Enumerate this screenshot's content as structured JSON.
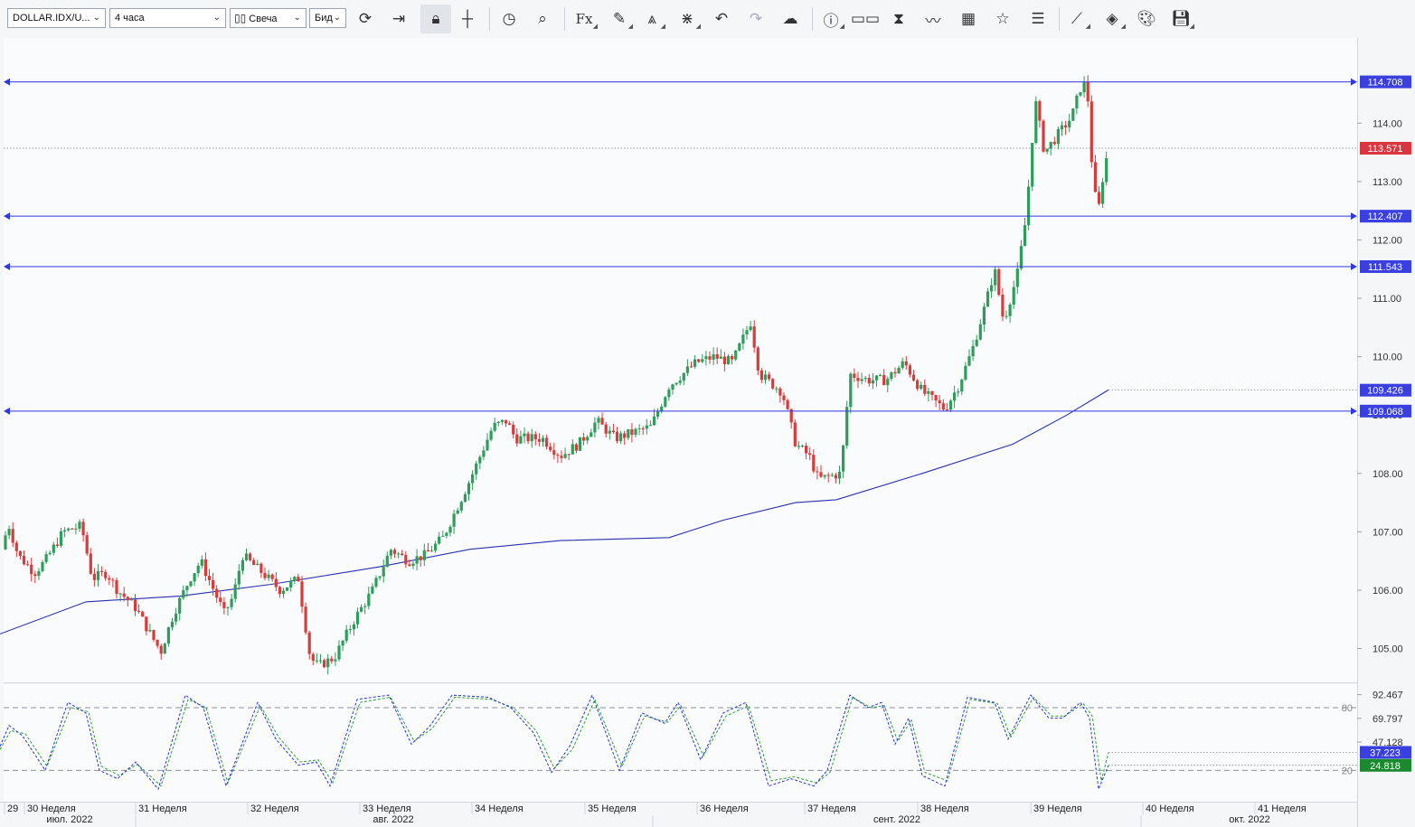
{
  "toolbar": {
    "symbol": "DOLLAR.IDX/U...",
    "timeframe": "4 часа",
    "chart_type": "Свеча",
    "price_side": "Бид",
    "icons": [
      "refresh-icon",
      "scroll-to-end-icon",
      "lock-icon",
      "crosshair-icon",
      "clock-icon",
      "zoom-icon",
      "indicator-fx-icon",
      "pencil-icon",
      "compass-icon",
      "network-icon",
      "undo-icon",
      "redo-icon",
      "cloud-upload-icon",
      "info-icon",
      "compare-icon",
      "hourglass-icon",
      "wave-icon",
      "calendar-icon",
      "star-icon",
      "list-icon",
      "trend-icon",
      "layers-icon",
      "palette-icon",
      "save-icon"
    ]
  },
  "colors": {
    "bull": "#2e9d5b",
    "bear": "#d93a3a",
    "ma": "#2a2fb0",
    "hline": "#3138e0",
    "current_price_bg": "#d9363e",
    "stoch_d_bg": "#1a8a2e",
    "label_blue": "#3a3fe0"
  },
  "chart_data": {
    "type": "candlestick",
    "title": "",
    "xlabel": "",
    "ylabel": "",
    "y_axis_ticks": [
      "114.00",
      "113.00",
      "112.00",
      "111.00",
      "110.00",
      "109.00",
      "108.00",
      "107.00",
      "106.00",
      "105.00"
    ],
    "ylim": [
      104.42,
      115.46
    ],
    "price_path": [
      [
        0,
        106.7
      ],
      [
        10,
        107.1
      ],
      [
        20,
        106.6
      ],
      [
        38,
        106.3
      ],
      [
        50,
        106.5
      ],
      [
        70,
        107.0
      ],
      [
        90,
        107.1
      ],
      [
        102,
        106.2
      ],
      [
        118,
        106.3
      ],
      [
        130,
        106.0
      ],
      [
        150,
        105.7
      ],
      [
        168,
        105.2
      ],
      [
        178,
        104.95
      ],
      [
        192,
        105.6
      ],
      [
        210,
        106.2
      ],
      [
        222,
        106.5
      ],
      [
        248,
        105.6
      ],
      [
        258,
        105.9
      ],
      [
        268,
        106.6
      ],
      [
        290,
        106.3
      ],
      [
        310,
        106.0
      ],
      [
        330,
        106.2
      ],
      [
        343,
        104.85
      ],
      [
        352,
        104.7
      ],
      [
        370,
        104.85
      ],
      [
        392,
        105.5
      ],
      [
        412,
        106.0
      ],
      [
        432,
        106.7
      ],
      [
        452,
        106.5
      ],
      [
        470,
        106.6
      ],
      [
        490,
        106.9
      ],
      [
        520,
        107.9
      ],
      [
        545,
        108.8
      ],
      [
        560,
        108.9
      ],
      [
        570,
        108.6
      ],
      [
        600,
        108.6
      ],
      [
        620,
        108.3
      ],
      [
        640,
        108.5
      ],
      [
        660,
        108.9
      ],
      [
        680,
        108.6
      ],
      [
        700,
        108.7
      ],
      [
        720,
        108.8
      ],
      [
        740,
        109.5
      ],
      [
        770,
        109.9
      ],
      [
        790,
        110.0
      ],
      [
        810,
        109.9
      ],
      [
        830,
        110.6
      ],
      [
        840,
        109.7
      ],
      [
        865,
        109.4
      ],
      [
        880,
        108.5
      ],
      [
        895,
        108.3
      ],
      [
        905,
        107.9
      ],
      [
        930,
        108.0
      ],
      [
        940,
        109.7
      ],
      [
        960,
        109.6
      ],
      [
        980,
        109.6
      ],
      [
        1000,
        109.9
      ],
      [
        1020,
        109.4
      ],
      [
        1045,
        109.1
      ],
      [
        1060,
        109.5
      ],
      [
        1075,
        110.1
      ],
      [
        1090,
        110.9
      ],
      [
        1100,
        111.5
      ],
      [
        1110,
        110.6
      ],
      [
        1125,
        111.4
      ],
      [
        1135,
        112.4
      ],
      [
        1145,
        114.4
      ],
      [
        1155,
        113.5
      ],
      [
        1170,
        113.8
      ],
      [
        1185,
        114.1
      ],
      [
        1195,
        114.6
      ],
      [
        1202,
        114.7
      ],
      [
        1208,
        113.2
      ],
      [
        1214,
        112.4
      ],
      [
        1220,
        113.1
      ],
      [
        1226,
        113.57
      ]
    ],
    "moving_average": {
      "name": "",
      "path": [
        [
          0,
          105.25
        ],
        [
          95,
          105.8
        ],
        [
          200,
          105.9
        ],
        [
          300,
          106.1
        ],
        [
          420,
          106.4
        ],
        [
          520,
          106.7
        ],
        [
          620,
          106.85
        ],
        [
          740,
          106.9
        ],
        [
          800,
          107.2
        ],
        [
          880,
          107.5
        ],
        [
          925,
          107.55
        ],
        [
          1020,
          108.0
        ],
        [
          1120,
          108.5
        ],
        [
          1180,
          109.0
        ],
        [
          1226,
          109.43
        ]
      ],
      "projection_level": 109.426
    },
    "horizontal_lines": [
      114.708,
      112.407,
      111.543,
      109.068
    ],
    "current_price_line": 113.571,
    "price_labels": [
      {
        "text": "114.708",
        "value": 114.708,
        "style": "blue"
      },
      {
        "text": "113.571",
        "value": 113.571,
        "style": "red"
      },
      {
        "text": "112.407",
        "value": 112.407,
        "style": "blue"
      },
      {
        "text": "111.543",
        "value": 111.543,
        "style": "blue"
      },
      {
        "text": "109.426",
        "value": 109.426,
        "style": "blue"
      },
      {
        "text": "109.068",
        "value": 109.068,
        "style": "blue"
      }
    ],
    "stochastic": {
      "k_line": [
        [
          0,
          43
        ],
        [
          10,
          63
        ],
        [
          25,
          53
        ],
        [
          50,
          20
        ],
        [
          75,
          85
        ],
        [
          95,
          75
        ],
        [
          110,
          20
        ],
        [
          130,
          12
        ],
        [
          150,
          28
        ],
        [
          175,
          2
        ],
        [
          205,
          92
        ],
        [
          225,
          80
        ],
        [
          250,
          5
        ],
        [
          285,
          85
        ],
        [
          305,
          50
        ],
        [
          330,
          25
        ],
        [
          350,
          28
        ],
        [
          365,
          5
        ],
        [
          395,
          88
        ],
        [
          430,
          92
        ],
        [
          455,
          45
        ],
        [
          475,
          62
        ],
        [
          500,
          92
        ],
        [
          540,
          90
        ],
        [
          565,
          80
        ],
        [
          590,
          56
        ],
        [
          610,
          18
        ],
        [
          630,
          43
        ],
        [
          655,
          92
        ],
        [
          685,
          20
        ],
        [
          710,
          75
        ],
        [
          735,
          65
        ],
        [
          750,
          85
        ],
        [
          775,
          30
        ],
        [
          800,
          75
        ],
        [
          825,
          85
        ],
        [
          850,
          5
        ],
        [
          875,
          12
        ],
        [
          900,
          5
        ],
        [
          915,
          20
        ],
        [
          940,
          92
        ],
        [
          960,
          80
        ],
        [
          975,
          85
        ],
        [
          990,
          45
        ],
        [
          1005,
          70
        ],
        [
          1020,
          15
        ],
        [
          1045,
          5
        ],
        [
          1070,
          90
        ],
        [
          1100,
          85
        ],
        [
          1115,
          50
        ],
        [
          1140,
          92
        ],
        [
          1160,
          70
        ],
        [
          1175,
          70
        ],
        [
          1195,
          85
        ],
        [
          1205,
          70
        ],
        [
          1215,
          2
        ],
        [
          1226,
          24.8
        ]
      ],
      "d_line": [
        [
          0,
          40
        ],
        [
          12,
          58
        ],
        [
          28,
          55
        ],
        [
          52,
          24
        ],
        [
          78,
          80
        ],
        [
          98,
          76
        ],
        [
          112,
          24
        ],
        [
          132,
          15
        ],
        [
          152,
          26
        ],
        [
          178,
          5
        ],
        [
          208,
          88
        ],
        [
          228,
          80
        ],
        [
          252,
          8
        ],
        [
          288,
          82
        ],
        [
          308,
          52
        ],
        [
          332,
          28
        ],
        [
          352,
          30
        ],
        [
          368,
          8
        ],
        [
          398,
          85
        ],
        [
          432,
          90
        ],
        [
          458,
          48
        ],
        [
          478,
          60
        ],
        [
          503,
          90
        ],
        [
          543,
          88
        ],
        [
          568,
          80
        ],
        [
          593,
          58
        ],
        [
          613,
          22
        ],
        [
          633,
          40
        ],
        [
          658,
          88
        ],
        [
          688,
          24
        ],
        [
          713,
          72
        ],
        [
          738,
          66
        ],
        [
          753,
          82
        ],
        [
          778,
          34
        ],
        [
          803,
          72
        ],
        [
          828,
          82
        ],
        [
          853,
          10
        ],
        [
          878,
          14
        ],
        [
          903,
          8
        ],
        [
          918,
          18
        ],
        [
          943,
          90
        ],
        [
          963,
          80
        ],
        [
          978,
          82
        ],
        [
          993,
          48
        ],
        [
          1008,
          68
        ],
        [
          1023,
          18
        ],
        [
          1048,
          10
        ],
        [
          1073,
          88
        ],
        [
          1103,
          84
        ],
        [
          1118,
          52
        ],
        [
          1143,
          90
        ],
        [
          1163,
          72
        ],
        [
          1178,
          72
        ],
        [
          1198,
          84
        ],
        [
          1208,
          72
        ],
        [
          1218,
          10
        ],
        [
          1226,
          37.2
        ]
      ],
      "ylim": [
        -10,
        102.5
      ],
      "levels": [
        80,
        20
      ],
      "level_labels": [
        "80",
        "20"
      ],
      "axis_labels": [
        {
          "text": "92.467",
          "value": 92.467
        },
        {
          "text": "69.797",
          "value": 69.797
        },
        {
          "text": "47.128",
          "value": 47.128
        }
      ],
      "value_labels": [
        {
          "text": "37.223",
          "value": 37.223,
          "style": "blue"
        },
        {
          "text": "24.818",
          "value": 24.818,
          "style": "green"
        }
      ]
    },
    "x_axis": {
      "weeks": [
        {
          "label": "29",
          "x": 8
        },
        {
          "label": "30 Неделя",
          "x": 30
        },
        {
          "label": "31 Неделя",
          "x": 153
        },
        {
          "label": "32 Неделя",
          "x": 277
        },
        {
          "label": "33 Неделя",
          "x": 401
        },
        {
          "label": "34 Неделя",
          "x": 525
        },
        {
          "label": "35 Неделя",
          "x": 650
        },
        {
          "label": "36 Неделя",
          "x": 774
        },
        {
          "label": "37 Неделя",
          "x": 893
        },
        {
          "label": "38 Неделя",
          "x": 1018
        },
        {
          "label": "39 Неделя",
          "x": 1143
        },
        {
          "label": "40 Неделя",
          "x": 1267
        },
        {
          "label": "41 Неделя",
          "x": 1391
        }
      ],
      "months": [
        {
          "label": "июл. 2022",
          "x": 77
        },
        {
          "label": "авг. 2022",
          "x": 435
        },
        {
          "label": "сент. 2022",
          "x": 992
        },
        {
          "label": "окт. 2022",
          "x": 1382
        }
      ]
    }
  }
}
